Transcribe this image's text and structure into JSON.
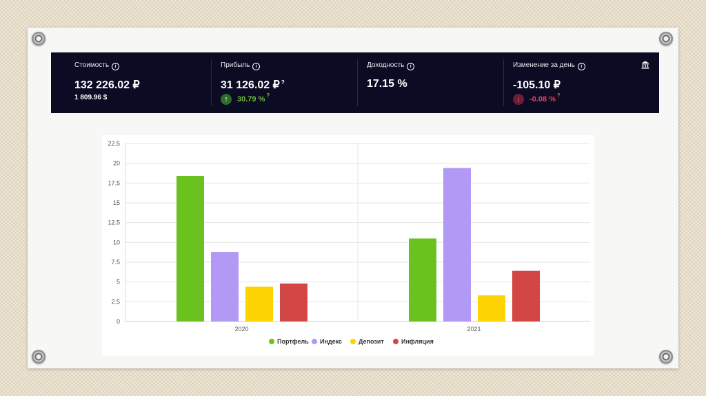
{
  "stats": [
    {
      "label": "Стоимость",
      "value": "132 226.02 ₽",
      "sub": "1 809.96 $",
      "sub_type": "plain"
    },
    {
      "label": "Прибыль",
      "value": "31 126.02 ₽",
      "value_help": "?",
      "sub": "30.79 %",
      "sub_help": "?",
      "sub_type": "up"
    },
    {
      "label": "Доходность",
      "value": "17.15 %",
      "sub": "",
      "sub_type": "none"
    },
    {
      "label": "Изменение за день",
      "value": "-105.10 ₽",
      "sub": "-0.08 %",
      "sub_help": "?",
      "sub_type": "down"
    }
  ],
  "header_icon": "bank-icon",
  "colors": {
    "panel_bg": "#0c0b24",
    "positive": "#6cbf3a",
    "negative": "#e0435c",
    "positive_badge": "#2e6b2a",
    "negative_badge": "#6b1e34"
  },
  "chart_data": {
    "type": "bar",
    "categories": [
      "2020",
      "2021"
    ],
    "series": [
      {
        "name": "Портфель",
        "color": "#6ac21e",
        "values": [
          18.4,
          10.5
        ]
      },
      {
        "name": "Индекс",
        "color": "#b199f5",
        "values": [
          8.8,
          19.4
        ]
      },
      {
        "name": "Депозит",
        "color": "#fdd303",
        "values": [
          4.4,
          3.3
        ]
      },
      {
        "name": "Инфляция",
        "color": "#d24646",
        "values": [
          4.8,
          6.4
        ]
      }
    ],
    "yticks": [
      "0",
      "2.5",
      "5",
      "7.5",
      "10",
      "12.5",
      "15",
      "17.5",
      "20",
      "22.5"
    ],
    "ylim": [
      0,
      22.5
    ],
    "grid": true,
    "legend_position": "bottom"
  }
}
